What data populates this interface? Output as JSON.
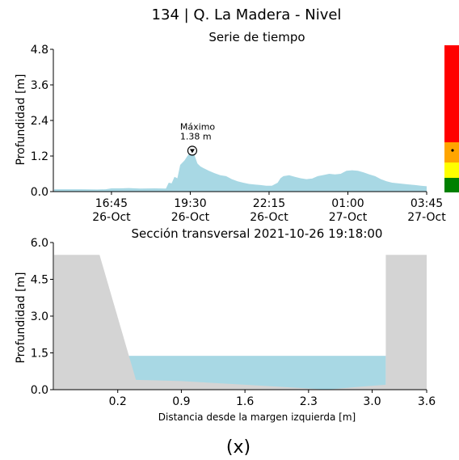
{
  "title": "134 | Q. La Madera - Nivel",
  "caption": "(x)",
  "colors": {
    "water": "#a8d8e4",
    "terrain": "#d4d4d4",
    "scale_red": "#ff0000",
    "scale_orange": "#ffa500",
    "scale_yellow": "#ffff00",
    "scale_green": "#008000"
  },
  "chart_data": [
    {
      "type": "area",
      "title": "Serie de tiempo",
      "ylabel": "Profundidad [m]",
      "xlabel": "",
      "ylim": [
        0,
        4.8
      ],
      "yticks": [
        "0.0",
        "1.2",
        "2.4",
        "3.6",
        "4.8"
      ],
      "xticks": [
        {
          "time": "16:45",
          "date": "26-Oct",
          "hours": 2.0
        },
        {
          "time": "19:30",
          "date": "26-Oct",
          "hours": 4.75
        },
        {
          "time": "22:15",
          "date": "26-Oct",
          "hours": 7.5
        },
        {
          "time": "01:00",
          "date": "27-Oct",
          "hours": 10.25
        },
        {
          "time": "03:45",
          "date": "27-Oct",
          "hours": 13.0
        }
      ],
      "series": [
        {
          "hours": [
            0.0,
            0.5,
            1.0,
            1.5,
            1.8,
            2.0,
            2.3,
            2.6,
            3.0,
            3.5,
            3.9,
            4.0,
            4.1,
            4.2,
            4.3,
            4.4,
            4.5,
            4.55,
            4.65,
            4.75,
            4.82,
            4.9,
            5.0,
            5.1,
            5.2,
            5.4,
            5.6,
            5.8,
            6.0,
            6.2,
            6.4,
            6.6,
            6.8,
            7.0,
            7.2,
            7.4,
            7.6,
            7.8,
            7.9,
            8.0,
            8.2,
            8.4,
            8.6,
            8.8,
            9.0,
            9.2,
            9.4,
            9.6,
            9.8,
            10.0,
            10.2,
            10.4,
            10.6,
            10.8,
            11.0,
            11.2,
            11.4,
            11.6,
            11.8,
            12.0,
            12.2,
            12.4,
            12.6,
            12.8,
            13.0
          ],
          "values": [
            0.08,
            0.08,
            0.08,
            0.07,
            0.08,
            0.11,
            0.11,
            0.12,
            0.1,
            0.11,
            0.1,
            0.3,
            0.28,
            0.5,
            0.45,
            0.9,
            1.0,
            1.05,
            1.2,
            1.32,
            1.38,
            1.22,
            0.95,
            0.85,
            0.8,
            0.7,
            0.62,
            0.55,
            0.52,
            0.42,
            0.35,
            0.3,
            0.26,
            0.24,
            0.22,
            0.2,
            0.2,
            0.3,
            0.45,
            0.52,
            0.55,
            0.5,
            0.45,
            0.42,
            0.44,
            0.52,
            0.56,
            0.6,
            0.58,
            0.6,
            0.7,
            0.72,
            0.7,
            0.65,
            0.58,
            0.52,
            0.42,
            0.35,
            0.3,
            0.28,
            0.26,
            0.24,
            0.22,
            0.2,
            0.18
          ]
        }
      ],
      "annotation": {
        "label": "Máximo",
        "value_label": "1.38 m",
        "hours": 4.82,
        "value": 1.38
      }
    },
    {
      "type": "area",
      "title": "Sección transversal 2021-10-26 19:18:00",
      "xlabel": "Distancia desde la margen izquierda [m]",
      "ylabel": "Profundidad [m]",
      "ylim": [
        0,
        6.0
      ],
      "xlim": [
        -0.5,
        3.6
      ],
      "yticks": [
        "0.0",
        "1.5",
        "3.0",
        "4.5",
        "6.0"
      ],
      "xticks": [
        "0.2",
        "0.9",
        "1.6",
        "2.3",
        "3.0",
        "3.6"
      ],
      "water_level": 1.38,
      "terrain": {
        "x": [
          -0.5,
          0.0,
          0.4,
          0.9,
          1.6,
          2.3,
          2.5,
          2.8,
          3.15,
          3.15,
          3.6
        ],
        "y": [
          5.5,
          5.5,
          0.4,
          0.35,
          0.2,
          0.05,
          0.0,
          0.1,
          0.2,
          5.5,
          5.5
        ]
      },
      "water_x_range": [
        0.3,
        3.15
      ]
    }
  ]
}
